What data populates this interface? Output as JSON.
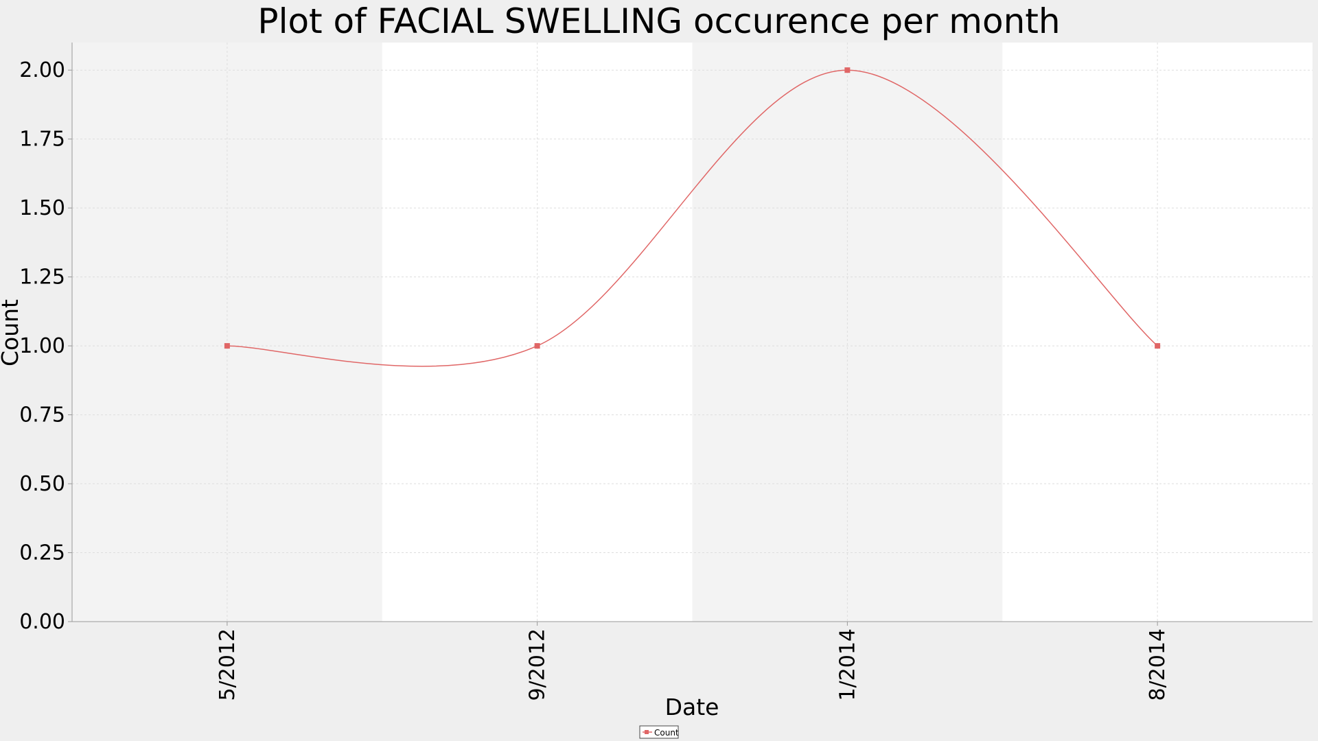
{
  "chart_data": {
    "type": "line",
    "title": "Plot of FACIAL SWELLING occurence per month",
    "xlabel": "Date",
    "ylabel": "Count",
    "x_ticks": [
      "5/2012",
      "9/2012",
      "1/2014",
      "8/2014"
    ],
    "y_ticks": [
      "0.00",
      "0.25",
      "0.50",
      "0.75",
      "1.00",
      "1.25",
      "1.50",
      "1.75",
      "2.00"
    ],
    "ylim": [
      0,
      2.1
    ],
    "series": [
      {
        "name": "Count",
        "color": "#e06666",
        "points": [
          {
            "label": "5/2012",
            "value": 1
          },
          {
            "label": "9/2012",
            "value": 1
          },
          {
            "label": "1/2014",
            "value": 2
          },
          {
            "label": "8/2014",
            "value": 1
          }
        ]
      }
    ],
    "grid": true,
    "legend": "bottom-center"
  }
}
